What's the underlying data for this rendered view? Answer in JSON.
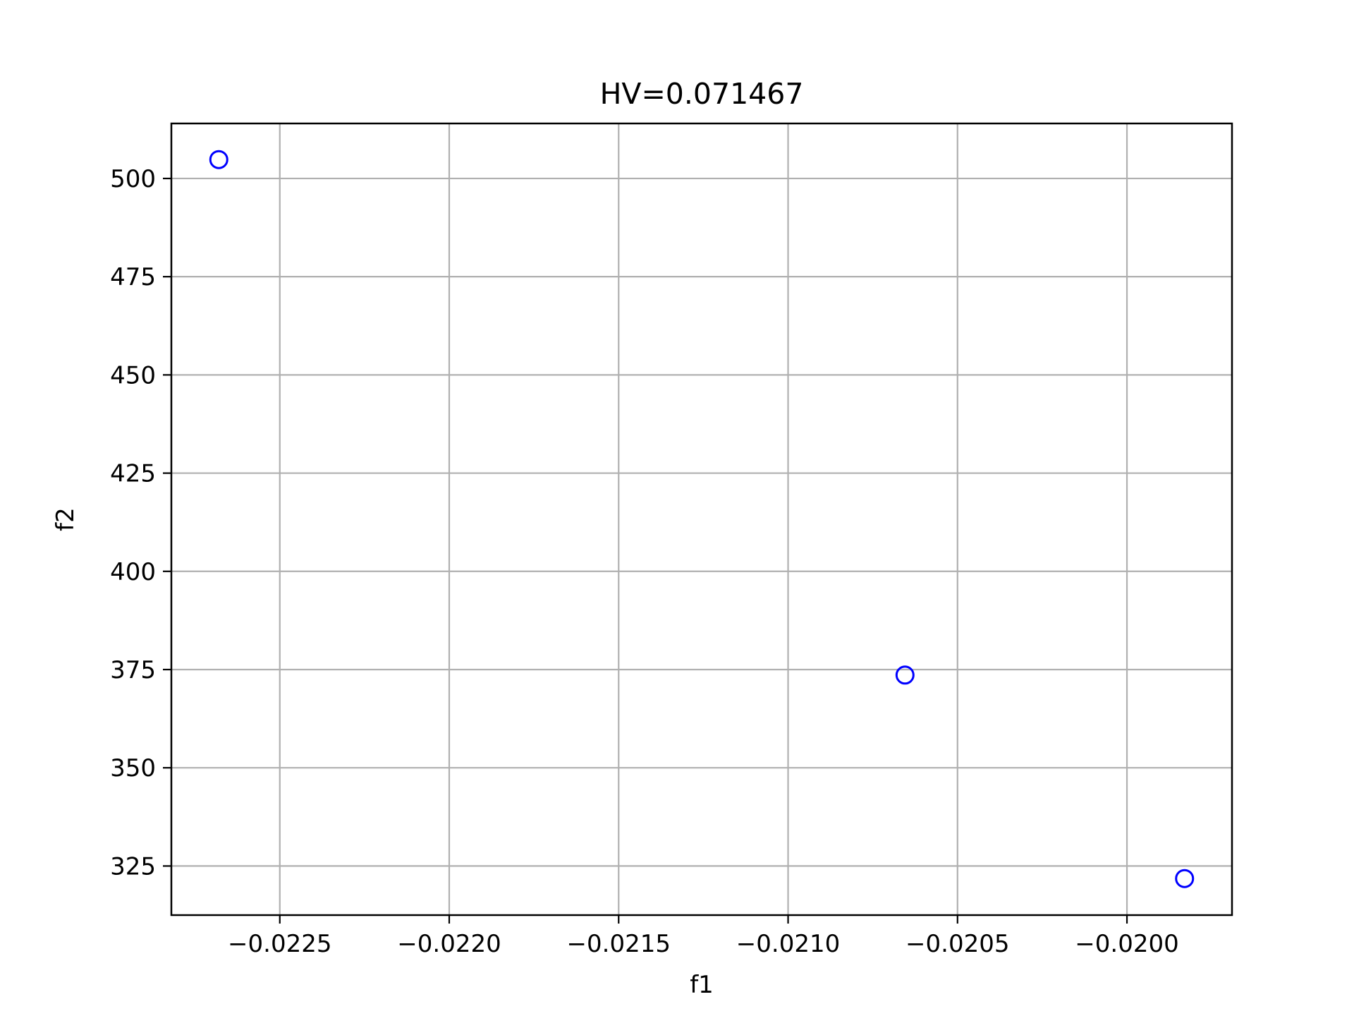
{
  "chart_data": {
    "type": "scatter",
    "title": "HV=0.071467",
    "xlabel": "f1",
    "ylabel": "f2",
    "xlim": [
      -0.02282,
      -0.01969
    ],
    "ylim": [
      312.5,
      514
    ],
    "x_ticks": [
      -0.0225,
      -0.022,
      -0.0215,
      -0.021,
      -0.0205,
      -0.02
    ],
    "x_tick_labels": [
      "−0.0225",
      "−0.0220",
      "−0.0215",
      "−0.0210",
      "−0.0205",
      "−0.0200"
    ],
    "y_ticks": [
      325,
      350,
      375,
      400,
      425,
      450,
      475,
      500
    ],
    "y_tick_labels": [
      "325",
      "350",
      "375",
      "400",
      "425",
      "450",
      "475",
      "500"
    ],
    "grid": true,
    "marker": "open-circle",
    "marker_color": "#0000ff",
    "grid_color": "#b0b0b0",
    "series": [
      {
        "x": [
          -0.02268,
          -0.020655,
          -0.01983
        ],
        "y": [
          504.8,
          373.6,
          321.8
        ]
      }
    ]
  }
}
